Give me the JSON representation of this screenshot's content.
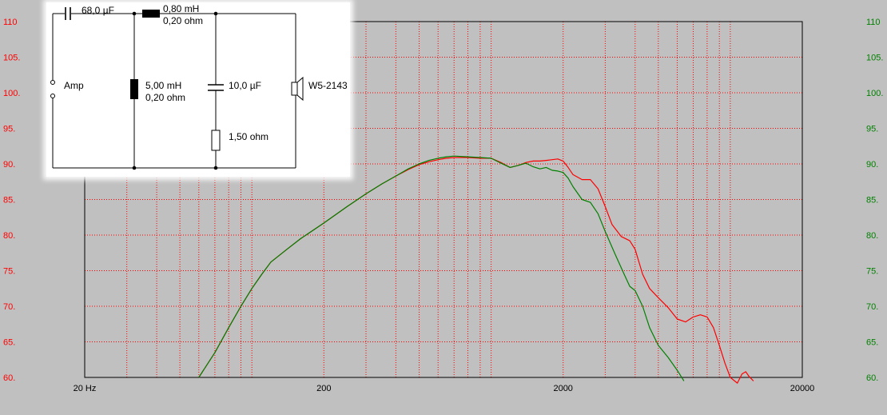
{
  "chart_data": {
    "type": "line",
    "x_scale": "log",
    "xlim": [
      20,
      20000
    ],
    "ylim": [
      60,
      110
    ],
    "x_tick_labels": [
      {
        "value": 20,
        "label": "20 Hz"
      },
      {
        "value": 200,
        "label": "200"
      },
      {
        "value": 2000,
        "label": "2000"
      },
      {
        "value": 20000,
        "label": "20000"
      }
    ],
    "y_ticks": [
      110,
      105,
      100,
      95,
      90,
      85,
      80,
      75,
      70,
      65,
      60
    ],
    "y_tick_labels_left": [
      "110",
      "105.",
      "100.",
      "95.",
      "90.",
      "85.",
      "80.",
      "75.",
      "70.",
      "65.",
      "60."
    ],
    "y_tick_labels_right": [
      "110",
      "105.",
      "100.",
      "95.",
      "90.",
      "85.",
      "80.",
      "75.",
      "70.",
      "65.",
      "60."
    ],
    "grid": true,
    "colors": {
      "left_axis": "#ff0000",
      "right_axis": "#008000",
      "grid": "#ff0000",
      "background": "#c0c0c0",
      "plot_frame": "#000000"
    },
    "series": [
      {
        "color": "#ff0000",
        "points": [
          [
            60,
            60
          ],
          [
            70,
            63.5
          ],
          [
            80,
            67
          ],
          [
            90,
            70
          ],
          [
            100,
            72.5
          ],
          [
            110,
            74.5
          ],
          [
            120,
            76.2
          ],
          [
            140,
            78
          ],
          [
            160,
            79.5
          ],
          [
            200,
            81.7
          ],
          [
            250,
            84
          ],
          [
            300,
            85.8
          ],
          [
            350,
            87.2
          ],
          [
            400,
            88.3
          ],
          [
            450,
            89.2
          ],
          [
            500,
            89.9
          ],
          [
            550,
            90.3
          ],
          [
            600,
            90.6
          ],
          [
            650,
            90.8
          ],
          [
            700,
            90.9
          ],
          [
            800,
            90.9
          ],
          [
            900,
            90.8
          ],
          [
            1000,
            90.8
          ],
          [
            1100,
            90.2
          ],
          [
            1200,
            89.5
          ],
          [
            1300,
            89.8
          ],
          [
            1400,
            90.2
          ],
          [
            1500,
            90.4
          ],
          [
            1600,
            90.4
          ],
          [
            1700,
            90.5
          ],
          [
            1800,
            90.6
          ],
          [
            1900,
            90.7
          ],
          [
            2000,
            90.4
          ],
          [
            2100,
            89.5
          ],
          [
            2200,
            88.5
          ],
          [
            2400,
            87.8
          ],
          [
            2600,
            87.8
          ],
          [
            2800,
            86.5
          ],
          [
            3000,
            84
          ],
          [
            3200,
            81.5
          ],
          [
            3500,
            79.8
          ],
          [
            3800,
            79.2
          ],
          [
            4000,
            78
          ],
          [
            4300,
            74.5
          ],
          [
            4600,
            72.5
          ],
          [
            5000,
            71.2
          ],
          [
            5500,
            69.8
          ],
          [
            6000,
            68.2
          ],
          [
            6500,
            67.8
          ],
          [
            7000,
            68.5
          ],
          [
            7500,
            68.8
          ],
          [
            8000,
            68.5
          ],
          [
            8500,
            67
          ],
          [
            9000,
            64.5
          ],
          [
            9500,
            62
          ],
          [
            10000,
            60
          ],
          [
            10700,
            59.2
          ],
          [
            11200,
            60.5
          ],
          [
            11600,
            60.8
          ],
          [
            12000,
            60.1
          ],
          [
            12500,
            59.5
          ]
        ]
      },
      {
        "color": "#008000",
        "points": [
          [
            60,
            60
          ],
          [
            70,
            63.5
          ],
          [
            80,
            67
          ],
          [
            90,
            70
          ],
          [
            100,
            72.5
          ],
          [
            110,
            74.5
          ],
          [
            120,
            76.2
          ],
          [
            140,
            78
          ],
          [
            160,
            79.5
          ],
          [
            200,
            81.7
          ],
          [
            250,
            84
          ],
          [
            300,
            85.8
          ],
          [
            350,
            87.2
          ],
          [
            400,
            88.3
          ],
          [
            450,
            89.3
          ],
          [
            500,
            90.0
          ],
          [
            550,
            90.5
          ],
          [
            600,
            90.8
          ],
          [
            650,
            91
          ],
          [
            700,
            91.1
          ],
          [
            800,
            91
          ],
          [
            900,
            90.9
          ],
          [
            1000,
            90.8
          ],
          [
            1100,
            90.1
          ],
          [
            1200,
            89.5
          ],
          [
            1300,
            89.8
          ],
          [
            1400,
            90.1
          ],
          [
            1500,
            89.6
          ],
          [
            1600,
            89.3
          ],
          [
            1700,
            89.5
          ],
          [
            1800,
            89.1
          ],
          [
            1900,
            89
          ],
          [
            2000,
            88.8
          ],
          [
            2100,
            88
          ],
          [
            2200,
            86.8
          ],
          [
            2400,
            85
          ],
          [
            2600,
            84.6
          ],
          [
            2800,
            83
          ],
          [
            3000,
            80.5
          ],
          [
            3300,
            77.3
          ],
          [
            3600,
            74.5
          ],
          [
            3800,
            72.8
          ],
          [
            4000,
            72.2
          ],
          [
            4300,
            70
          ],
          [
            4600,
            67
          ],
          [
            5000,
            64.5
          ],
          [
            5500,
            62.8
          ],
          [
            6000,
            61
          ],
          [
            6400,
            59.5
          ]
        ]
      }
    ]
  },
  "schematic": {
    "components": {
      "c1": {
        "value": "68,0 µF"
      },
      "l1": {
        "value": "0,80 mH",
        "resistance": "0,20 ohm"
      },
      "l2": {
        "value": "5,00 mH",
        "resistance": "0,20 ohm"
      },
      "c2": {
        "value": "10,0 µF"
      },
      "r1": {
        "value": "1,50 ohm"
      },
      "source": {
        "label": "Amp"
      },
      "driver": {
        "label": "W5-2143"
      }
    }
  }
}
